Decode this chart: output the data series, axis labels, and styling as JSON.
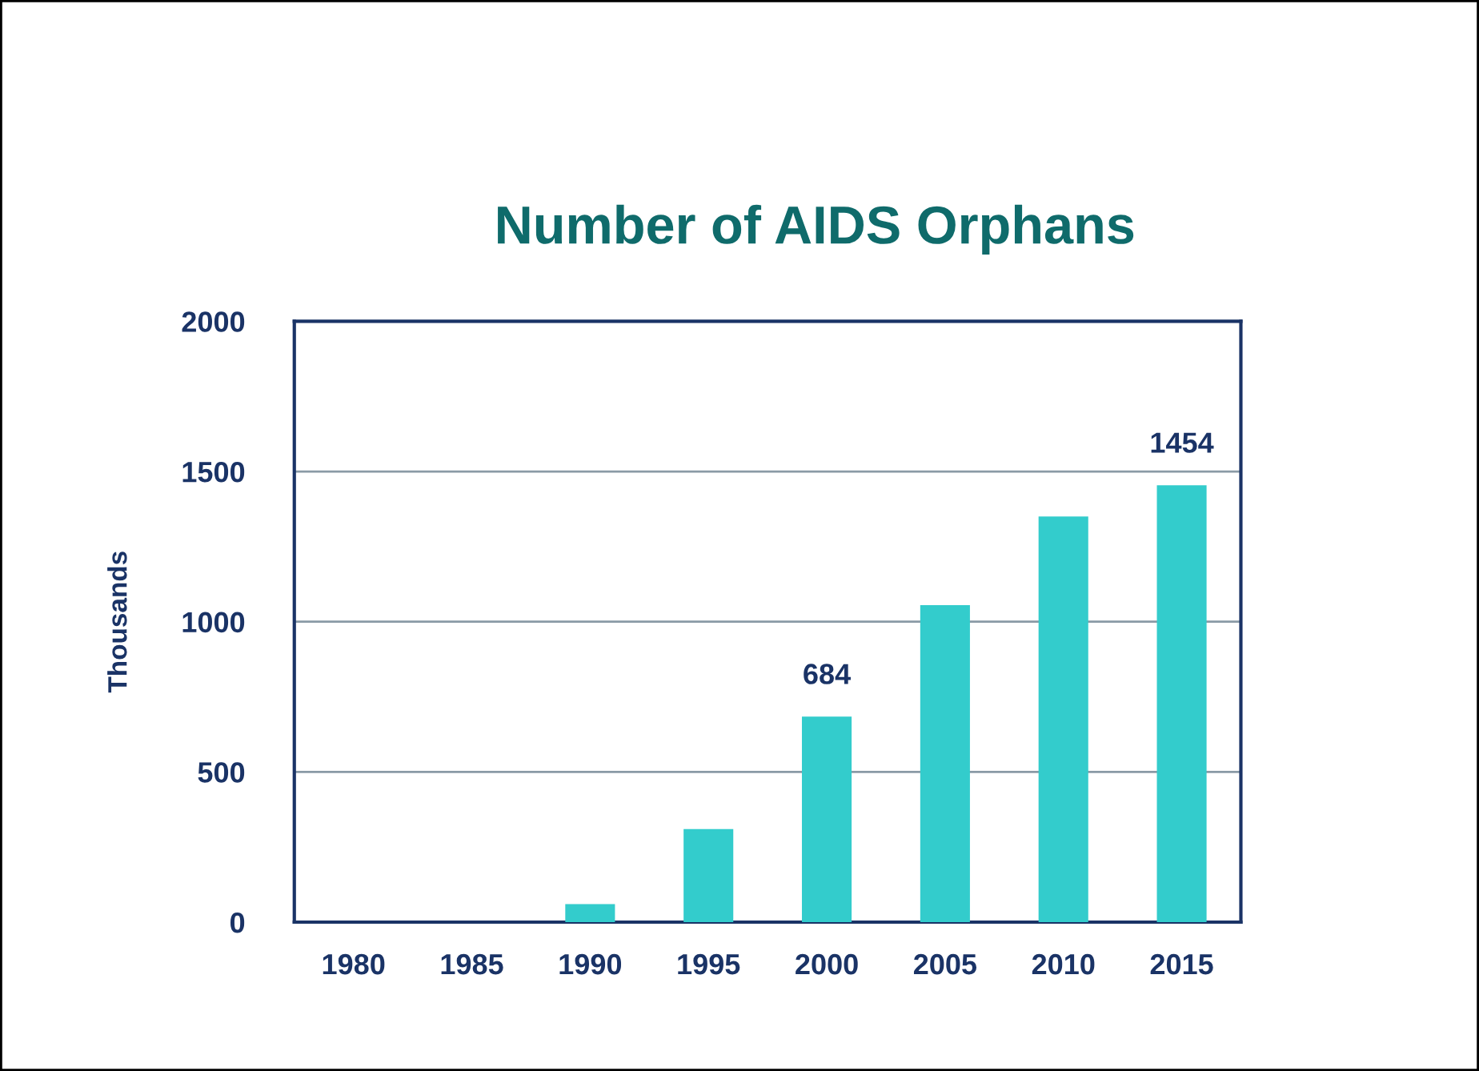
{
  "chart_data": {
    "type": "bar",
    "title": "Number of AIDS Orphans",
    "ylabel": "Thousands",
    "categories": [
      "1980",
      "1985",
      "1990",
      "1995",
      "2000",
      "2005",
      "2010",
      "2015"
    ],
    "values": [
      0,
      0,
      60,
      310,
      684,
      1055,
      1350,
      1454
    ],
    "value_labels": [
      null,
      null,
      null,
      null,
      "684",
      null,
      null,
      "1454"
    ],
    "color": "#33cccc",
    "ylim": [
      0,
      2000
    ],
    "yticks": [
      0,
      500,
      1000,
      1500,
      2000
    ],
    "grid": "y",
    "legend": false
  }
}
